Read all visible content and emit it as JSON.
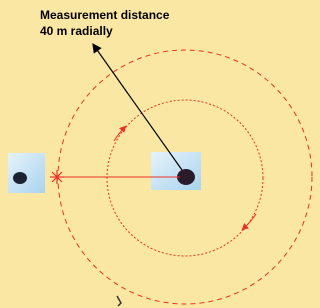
{
  "annotation": {
    "lines": [
      "Measurement distance",
      "40 m radially"
    ]
  }
}
